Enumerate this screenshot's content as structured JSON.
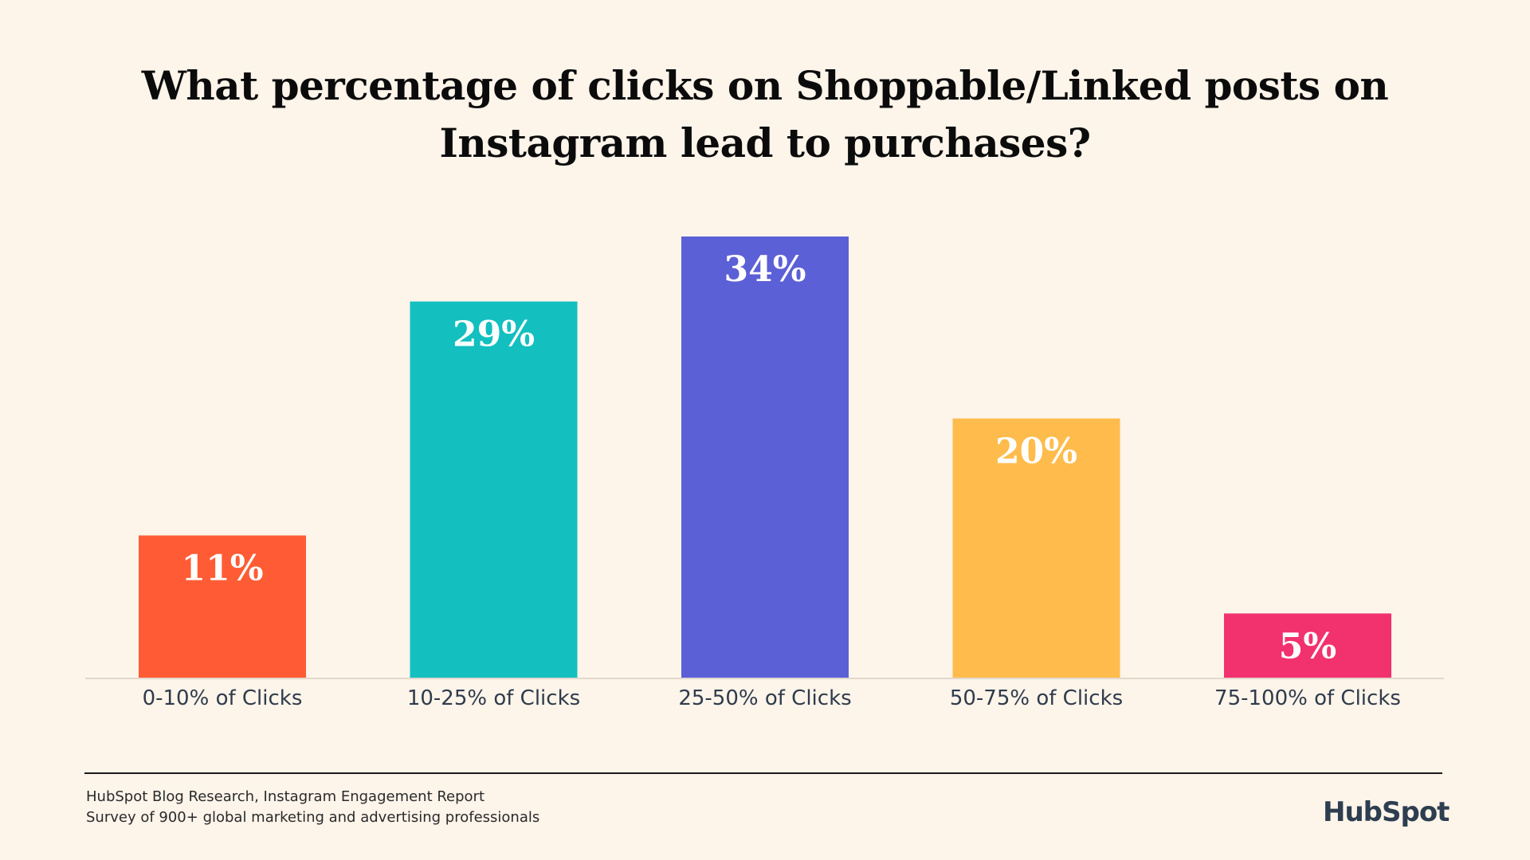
{
  "chart_data": {
    "type": "bar",
    "title": "What percentage of clicks on Shoppable/Linked posts on Instagram lead to purchases?",
    "categories": [
      "0-10% of Clicks",
      "10-25% of Clicks",
      "25-50% of Clicks",
      "50-75% of Clicks",
      "75-100% of Clicks"
    ],
    "values": [
      11,
      29,
      34,
      20,
      5
    ],
    "data_labels": [
      "11%",
      "29%",
      "34%",
      "20%",
      "5%"
    ],
    "colors": [
      "#ff5c35",
      "#13bfbf",
      "#5b60d6",
      "#ffbc4c",
      "#f2326f"
    ],
    "ylim": [
      0,
      34
    ],
    "grid": false,
    "legend": "none",
    "xlabel": "",
    "ylabel": ""
  },
  "footer": {
    "source_line1": "HubSpot Blog Research, Instagram Engagement Report",
    "source_line2": "Survey of 900+ global marketing and advertising professionals",
    "logo_text": "HubSpot"
  },
  "colors": {
    "background": "#fdf4ea",
    "text": "#0b0b0b"
  }
}
